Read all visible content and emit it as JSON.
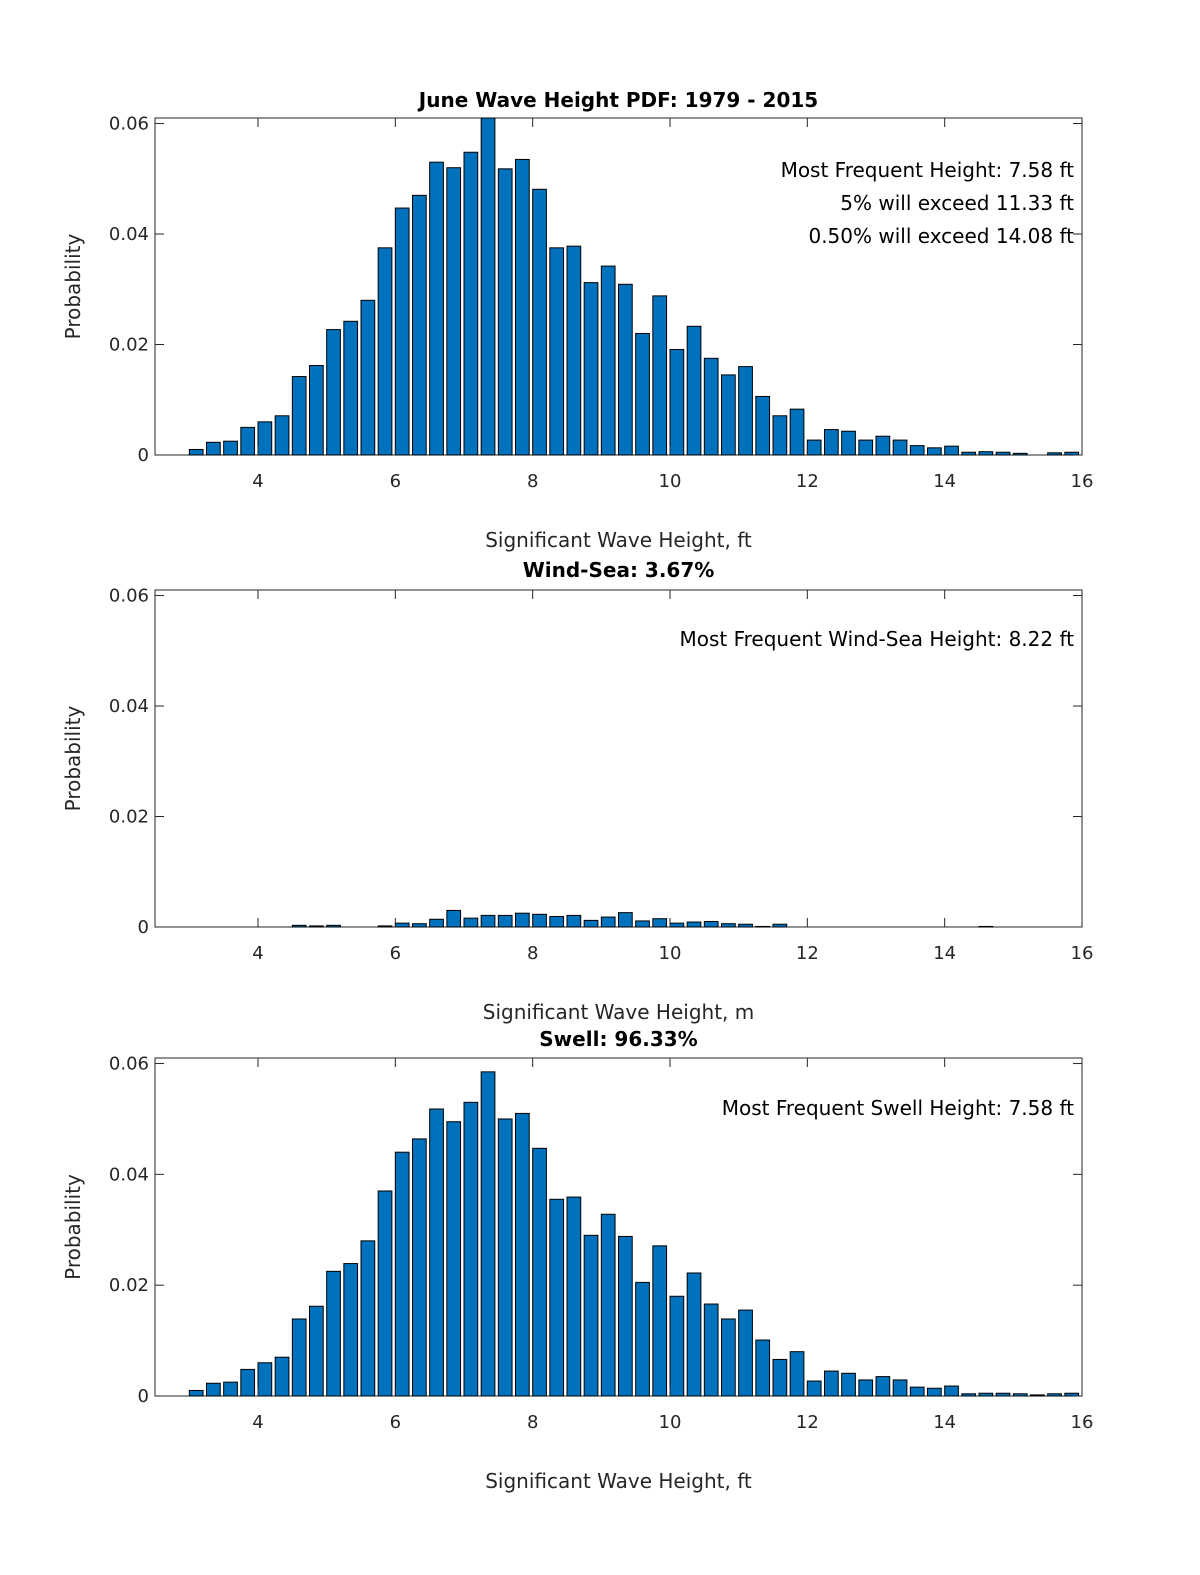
{
  "chart_data": [
    {
      "type": "bar",
      "title": "June Wave Height PDF: 1979 - 2015",
      "xlabel": "Significant Wave Height, ft",
      "ylabel": "Probability",
      "xlim": [
        2.5,
        16
      ],
      "ylim": [
        0,
        0.061
      ],
      "xticks": [
        4,
        6,
        8,
        10,
        12,
        14,
        16
      ],
      "yticks": [
        0,
        0.02,
        0.04,
        0.06
      ],
      "ytick_labels": [
        "0",
        "0.02",
        "0.04",
        "0.06"
      ],
      "annotations": [
        "Most Frequent Height: 7.58 ft",
        "5% will exceed 11.33 ft",
        "0.50% will exceed 14.08 ft"
      ],
      "x": [
        3.1,
        3.35,
        3.6,
        3.85,
        4.1,
        4.35,
        4.6,
        4.85,
        5.1,
        5.35,
        5.6,
        5.85,
        6.1,
        6.35,
        6.6,
        6.85,
        7.1,
        7.35,
        7.6,
        7.85,
        8.1,
        8.35,
        8.6,
        8.85,
        9.1,
        9.35,
        9.6,
        9.85,
        10.1,
        10.35,
        10.6,
        10.85,
        11.1,
        11.35,
        11.6,
        11.85,
        12.1,
        12.35,
        12.6,
        12.85,
        13.1,
        13.35,
        13.6,
        13.85,
        14.1,
        14.35,
        14.6,
        14.85,
        15.1,
        15.35,
        15.6,
        15.85
      ],
      "values": [
        0.001,
        0.0023,
        0.0025,
        0.005,
        0.006,
        0.0071,
        0.0142,
        0.0162,
        0.0227,
        0.0242,
        0.028,
        0.0375,
        0.0447,
        0.047,
        0.053,
        0.052,
        0.0548,
        0.061,
        0.0518,
        0.0535,
        0.0481,
        0.0375,
        0.0378,
        0.0312,
        0.0342,
        0.0309,
        0.022,
        0.0288,
        0.0191,
        0.0233,
        0.0175,
        0.0145,
        0.016,
        0.0106,
        0.0071,
        0.0083,
        0.0027,
        0.0046,
        0.0043,
        0.0027,
        0.0034,
        0.0027,
        0.0017,
        0.0013,
        0.0016,
        0.0005,
        0.0006,
        0.0005,
        0.0003,
        0.0,
        0.0004,
        0.0005
      ]
    },
    {
      "type": "bar",
      "title": "Wind-Sea: 3.67%",
      "xlabel": "Significant Wave Height, m",
      "ylabel": "Probability",
      "xlim": [
        2.5,
        16
      ],
      "ylim": [
        0,
        0.061
      ],
      "xticks": [
        4,
        6,
        8,
        10,
        12,
        14,
        16
      ],
      "yticks": [
        0,
        0.02,
        0.04,
        0.06
      ],
      "ytick_labels": [
        "0",
        "0.02",
        "0.04",
        "0.06"
      ],
      "annotations": [
        "Most Frequent Wind-Sea Height: 8.22 ft"
      ],
      "x": [
        3.1,
        3.35,
        3.6,
        3.85,
        4.1,
        4.35,
        4.6,
        4.85,
        5.1,
        5.35,
        5.6,
        5.85,
        6.1,
        6.35,
        6.6,
        6.85,
        7.1,
        7.35,
        7.6,
        7.85,
        8.1,
        8.35,
        8.6,
        8.85,
        9.1,
        9.35,
        9.6,
        9.85,
        10.1,
        10.35,
        10.6,
        10.85,
        11.1,
        11.35,
        11.6,
        11.85,
        12.1,
        12.35,
        12.6,
        12.85,
        13.1,
        13.35,
        13.6,
        13.85,
        14.1,
        14.35,
        14.6,
        14.85,
        15.1,
        15.35,
        15.6,
        15.85
      ],
      "values": [
        0,
        0,
        0,
        0,
        0,
        0,
        0.0003,
        0.0002,
        0.0003,
        0,
        0,
        0.0002,
        0.0007,
        0.0006,
        0.0014,
        0.003,
        0.0016,
        0.0021,
        0.0021,
        0.0025,
        0.0023,
        0.0019,
        0.0021,
        0.0012,
        0.0018,
        0.0026,
        0.0011,
        0.0015,
        0.0007,
        0.0009,
        0.001,
        0.0006,
        0.0005,
        0.0001,
        0.0005,
        0,
        0,
        0,
        0,
        0,
        0,
        0,
        0,
        0,
        0,
        0,
        0.0001,
        0,
        0,
        0,
        0,
        0
      ]
    },
    {
      "type": "bar",
      "title": "Swell: 96.33%",
      "xlabel": "Significant Wave Height, ft",
      "ylabel": "Probability",
      "xlim": [
        2.5,
        16
      ],
      "ylim": [
        0,
        0.061
      ],
      "xticks": [
        4,
        6,
        8,
        10,
        12,
        14,
        16
      ],
      "yticks": [
        0,
        0.02,
        0.04,
        0.06
      ],
      "ytick_labels": [
        "0",
        "0.02",
        "0.04",
        "0.06"
      ],
      "annotations": [
        "Most Frequent Swell Height: 7.58 ft"
      ],
      "x": [
        3.1,
        3.35,
        3.6,
        3.85,
        4.1,
        4.35,
        4.6,
        4.85,
        5.1,
        5.35,
        5.6,
        5.85,
        6.1,
        6.35,
        6.6,
        6.85,
        7.1,
        7.35,
        7.6,
        7.85,
        8.1,
        8.35,
        8.6,
        8.85,
        9.1,
        9.35,
        9.6,
        9.85,
        10.1,
        10.35,
        10.6,
        10.85,
        11.1,
        11.35,
        11.6,
        11.85,
        12.1,
        12.35,
        12.6,
        12.85,
        13.1,
        13.35,
        13.6,
        13.85,
        14.1,
        14.35,
        14.6,
        14.85,
        15.1,
        15.35,
        15.6,
        15.85
      ],
      "values": [
        0.001,
        0.0023,
        0.0025,
        0.0048,
        0.006,
        0.007,
        0.0139,
        0.0162,
        0.0225,
        0.0239,
        0.028,
        0.037,
        0.044,
        0.0464,
        0.0518,
        0.0495,
        0.053,
        0.0585,
        0.05,
        0.051,
        0.0447,
        0.0355,
        0.0359,
        0.029,
        0.0328,
        0.0288,
        0.0205,
        0.0271,
        0.018,
        0.0222,
        0.0166,
        0.0139,
        0.0155,
        0.0101,
        0.0066,
        0.008,
        0.0027,
        0.0045,
        0.0041,
        0.0029,
        0.0035,
        0.0029,
        0.0016,
        0.0014,
        0.0018,
        0.0004,
        0.0005,
        0.0005,
        0.0004,
        0.0002,
        0.0004,
        0.0005
      ]
    }
  ]
}
